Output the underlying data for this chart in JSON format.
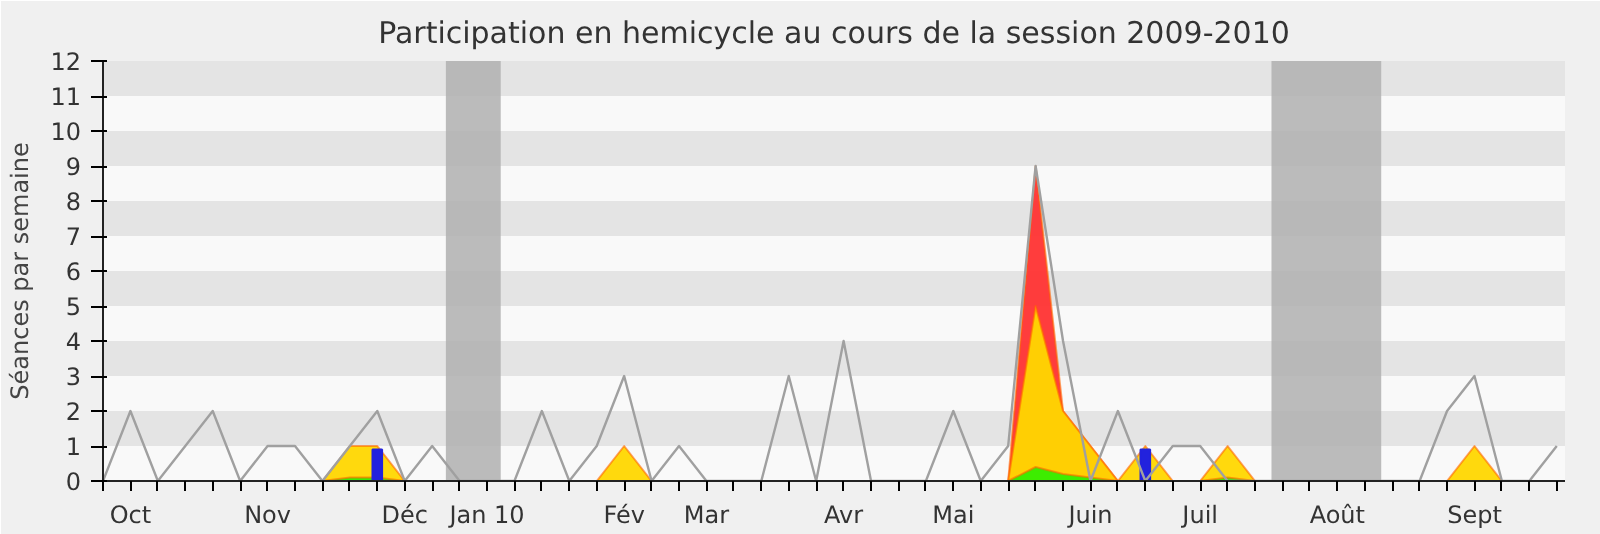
{
  "chart_data": {
    "type": "area",
    "title": "Participation en hemicycle au cours de la session 2009-2010",
    "ylabel": "Séances par semaine",
    "categories": [
      null,
      "Oct",
      null,
      null,
      null,
      null,
      "Nov",
      null,
      null,
      null,
      null,
      "Déc",
      null,
      null,
      "Jan 10",
      null,
      null,
      null,
      null,
      "Fév",
      null,
      null,
      "Mar",
      null,
      null,
      null,
      null,
      "Avr",
      null,
      null,
      null,
      "Mai",
      null,
      null,
      null,
      null,
      "Juin",
      null,
      null,
      null,
      "Juil",
      null,
      null,
      null,
      null,
      "Août",
      null,
      null,
      null,
      null,
      "Sept",
      null,
      null,
      null
    ],
    "ylim": [
      0,
      12
    ],
    "yticks": [
      0,
      1,
      2,
      3,
      4,
      5,
      6,
      7,
      8,
      9,
      10,
      11,
      12
    ],
    "series": [
      {
        "color": "#ff3333",
        "values": [
          null,
          null,
          null,
          null,
          null,
          null,
          null,
          null,
          null,
          null,
          null,
          null,
          null,
          null,
          null,
          null,
          null,
          null,
          null,
          null,
          null,
          null,
          null,
          null,
          null,
          null,
          null,
          null,
          null,
          null,
          null,
          null,
          null,
          0,
          9,
          2,
          1,
          0,
          null,
          null,
          null,
          null,
          null,
          null,
          null,
          null,
          null,
          null,
          null,
          null,
          null,
          null,
          null,
          null
        ]
      },
      {
        "color": "#ffd700",
        "values": [
          0,
          0,
          0,
          0,
          0,
          0,
          0,
          0,
          0,
          1,
          1,
          0,
          0,
          0,
          0,
          0,
          0,
          0,
          0,
          1,
          0,
          0,
          0,
          0,
          0,
          0,
          0,
          0,
          0,
          0,
          0,
          0,
          0,
          0,
          5,
          2,
          1,
          0,
          1,
          0,
          0,
          1,
          0,
          0,
          0,
          0,
          0,
          0,
          0,
          0,
          1,
          0,
          0,
          0
        ]
      },
      {
        "color": "#33ee00",
        "values": [
          0,
          0,
          0,
          0,
          0,
          0,
          0,
          0,
          0,
          0.1,
          0.1,
          0,
          0,
          0,
          0,
          0,
          0,
          0,
          0,
          0,
          0,
          0,
          0,
          0,
          0,
          0,
          0,
          0,
          0,
          0,
          0,
          0,
          0,
          0,
          0.4,
          0.2,
          0.1,
          0,
          0,
          0,
          0,
          0.1,
          0,
          0,
          0,
          0,
          0,
          0,
          0,
          0,
          0,
          0,
          0,
          0
        ]
      },
      {
        "type": "bar",
        "color": "#2222dd",
        "values": [
          null,
          null,
          null,
          null,
          null,
          null,
          null,
          null,
          null,
          null,
          0.9,
          null,
          null,
          null,
          null,
          null,
          null,
          null,
          null,
          null,
          null,
          null,
          null,
          null,
          null,
          null,
          null,
          null,
          null,
          null,
          null,
          null,
          null,
          null,
          null,
          null,
          null,
          null,
          0.9,
          null,
          null,
          null,
          null,
          null,
          null,
          null,
          null,
          null,
          null,
          null,
          null,
          null,
          null,
          null
        ]
      },
      {
        "type": "line",
        "color": "#a0a0a0",
        "values": [
          0,
          2,
          0,
          1,
          2,
          0,
          1,
          1,
          0,
          1,
          2,
          0,
          1,
          0,
          0,
          0,
          2,
          0,
          1,
          3,
          0,
          1,
          0,
          0,
          0,
          3,
          0,
          4,
          0,
          0,
          0,
          2,
          0,
          1,
          9,
          4,
          0,
          2,
          0,
          1,
          1,
          0,
          0,
          0,
          0,
          0,
          0,
          0,
          0,
          2,
          3,
          0,
          0,
          1
        ]
      }
    ]
  }
}
